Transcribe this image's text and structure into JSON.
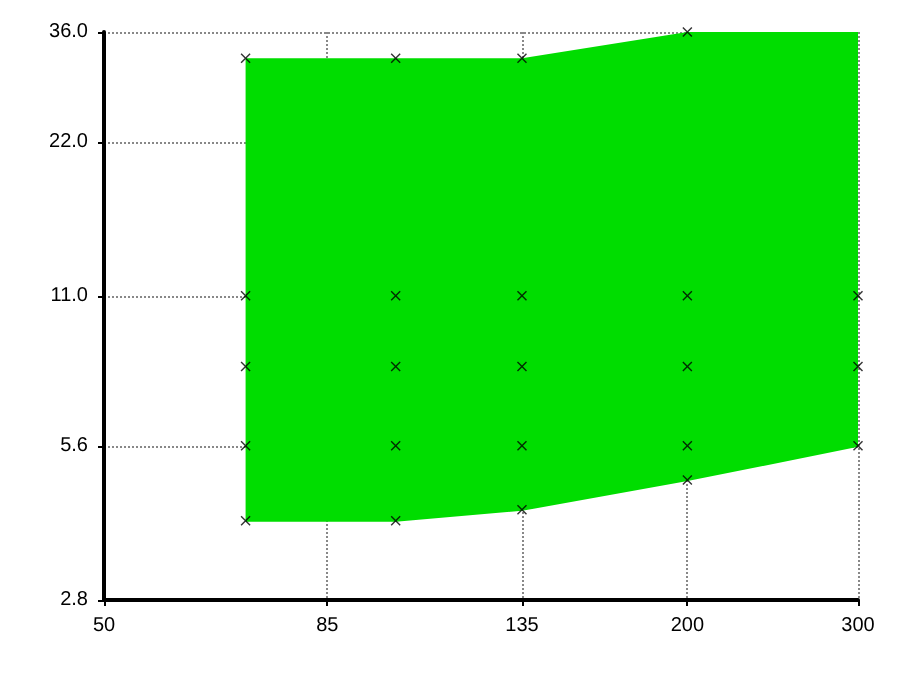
{
  "chart_data": {
    "type": "area",
    "log": "xy",
    "grid": true,
    "xlim": [
      50,
      300
    ],
    "xticks": [
      50,
      85,
      135,
      200,
      300
    ],
    "ylim": [
      2.8,
      36
    ],
    "yticks": [
      {
        "value": 2.8,
        "label": "2.8"
      },
      {
        "value": 5.6,
        "label": "5.6"
      },
      {
        "value": 11,
        "label": "11.0"
      },
      {
        "value": 22,
        "label": "22.0"
      },
      {
        "value": 36,
        "label": "36.0"
      }
    ],
    "series": [
      {
        "type": "area",
        "x": [
          70,
          100,
          135,
          200,
          300
        ],
        "values": [
          32,
          32,
          32,
          36,
          36
        ],
        "color": "#00dd00"
      },
      {
        "type": "line",
        "x": [
          70,
          100,
          135,
          200,
          300
        ],
        "values": [
          4,
          4,
          4.2,
          4.8,
          5.6
        ],
        "color": "#00dd00"
      },
      {
        "type": "scatter",
        "marker": "cross",
        "color": "#000000",
        "x": [
          70,
          70,
          70,
          70,
          70,
          100,
          100,
          100,
          100,
          100,
          135,
          135,
          135,
          135,
          135,
          200,
          200,
          200,
          200,
          200,
          300,
          300,
          300
        ],
        "values": [
          32,
          11,
          8,
          5.6,
          4,
          32,
          11,
          8,
          5.6,
          4,
          32,
          11,
          8,
          5.6,
          4.2,
          36,
          11,
          8,
          5.6,
          4.8,
          11,
          8,
          5.6
        ]
      }
    ]
  }
}
